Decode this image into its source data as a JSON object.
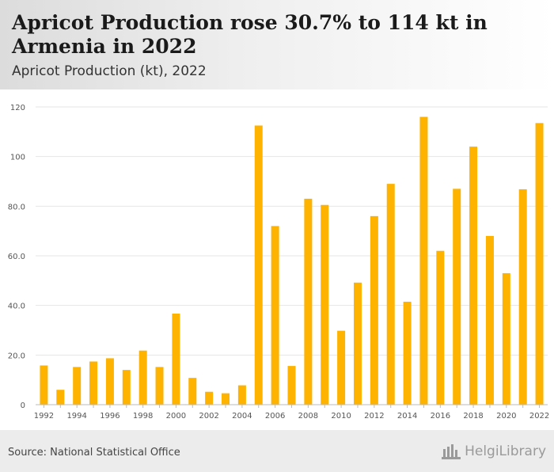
{
  "header": {
    "title": "Apricot Production rose 30.7% to 114 kt in Armenia in 2022",
    "subtitle": "Apricot Production (kt), 2022"
  },
  "footer": {
    "source": "Source: National Statistical Office",
    "logo_text": "HelgiLibrary"
  },
  "colors": {
    "bar": "#FDB300",
    "grid": "#e6e6e6",
    "axis_text": "#555555"
  },
  "chart_data": {
    "type": "bar",
    "title": "Apricot Production rose 30.7% to 114 kt in Armenia in 2022",
    "subtitle": "Apricot Production (kt), 2022",
    "xlabel": "",
    "ylabel": "",
    "ylim": [
      0,
      120
    ],
    "yticks": [
      0,
      20.0,
      40.0,
      60.0,
      80.0,
      100,
      120
    ],
    "ytick_labels": [
      "0",
      "20.0",
      "40.0",
      "60.0",
      "80.0",
      "100",
      "120"
    ],
    "xtick_labels": [
      "1992",
      "1994",
      "1996",
      "1998",
      "2000",
      "2002",
      "2004",
      "2006",
      "2008",
      "2010",
      "2012",
      "2014",
      "2016",
      "2018",
      "2020",
      "2022"
    ],
    "grid": true,
    "categories": [
      "1992",
      "1993",
      "1994",
      "1995",
      "1996",
      "1997",
      "1998",
      "1999",
      "2000",
      "2001",
      "2002",
      "2003",
      "2004",
      "2005",
      "2006",
      "2007",
      "2008",
      "2009",
      "2010",
      "2011",
      "2012",
      "2013",
      "2014",
      "2015",
      "2016",
      "2017",
      "2018",
      "2019",
      "2020",
      "2021",
      "2022"
    ],
    "values": [
      15.8,
      6.0,
      15.2,
      17.4,
      18.7,
      14.0,
      21.8,
      15.2,
      36.7,
      10.8,
      5.2,
      4.6,
      7.8,
      112.5,
      72.0,
      15.6,
      83.0,
      80.5,
      29.8,
      49.2,
      76.0,
      89.0,
      41.5,
      116.0,
      62.0,
      87.0,
      104.0,
      68.0,
      53.0,
      86.8,
      113.5
    ]
  }
}
